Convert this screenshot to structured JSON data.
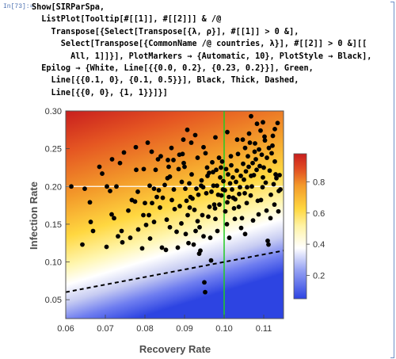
{
  "cell": {
    "label": "In[73]:=",
    "code_lines": [
      "Show[SIRParSpa,",
      "  ListPlot[Tooltip[#[[1]], #[[2]]] & /@",
      "    Transpose[{Select[Transpose[{λ, ρ}], #[[1]] > 0 &],",
      "      Select[Transpose[{CommonName /@ countries, λ}], #[[2]] > 0 &][[",
      "        All, 1]]}], PlotMarkers → {Automatic, 10}, PlotStyle → Black],",
      "  Epilog → {White, Line[{{0.0, 0.2}, {0.23, 0.2}}], Green,",
      "    Line[{{0.1, 0}, {0.1, 0.5}}], Black, Thick, Dashed,",
      "    Line[{{0, 0}, {1, 1}}]}]"
    ]
  },
  "colors": {
    "low": "#2a3fe0",
    "mid_light": "#ffffff",
    "yellow": "#ffd23a",
    "orange": "#f0851e",
    "high": "#c81e1e",
    "green_line": "#22cc22",
    "white_line": "#ffffff",
    "points": "#000000"
  },
  "chart_data": {
    "type": "scatter",
    "xlabel": "Recovery Rate",
    "ylabel": "Infection Rate",
    "xlim": [
      0.06,
      0.115
    ],
    "ylim": [
      0.025,
      0.3
    ],
    "xticks": [
      "0.06",
      "0.07",
      "0.08",
      "0.09",
      "0.10",
      "0.11"
    ],
    "yticks": [
      "0.05",
      "0.10",
      "0.15",
      "0.20",
      "0.25",
      "0.30"
    ],
    "colorbar": {
      "range": [
        0.05,
        0.98
      ],
      "ticks": [
        "0.2",
        "0.4",
        "0.6",
        "0.8"
      ]
    },
    "reference_lines": [
      {
        "label": "white horizontal",
        "y": 0.2
      },
      {
        "label": "green vertical",
        "x": 0.1
      },
      {
        "label": "black dashed",
        "from": [
          0.06,
          0.06
        ],
        "to": [
          0.115,
          0.115
        ]
      }
    ],
    "points": [
      [
        0.0614,
        0.2
      ],
      [
        0.0642,
        0.123
      ],
      [
        0.0648,
        0.197
      ],
      [
        0.0661,
        0.179
      ],
      [
        0.0663,
        0.153
      ],
      [
        0.0669,
        0.141
      ],
      [
        0.0685,
        0.226
      ],
      [
        0.0692,
        0.217
      ],
      [
        0.0704,
        0.2
      ],
      [
        0.0712,
        0.194
      ],
      [
        0.0716,
        0.163
      ],
      [
        0.0722,
        0.158
      ],
      [
        0.0728,
        0.2
      ],
      [
        0.0732,
        0.134
      ],
      [
        0.0741,
        0.141
      ],
      [
        0.0758,
        0.168
      ],
      [
        0.0767,
        0.182
      ],
      [
        0.0775,
        0.18
      ],
      [
        0.0778,
        0.222
      ],
      [
        0.0782,
        0.193
      ],
      [
        0.0796,
        0.162
      ],
      [
        0.08,
        0.178
      ],
      [
        0.0803,
        0.149
      ],
      [
        0.081,
        0.162
      ],
      [
        0.0812,
        0.201
      ],
      [
        0.0818,
        0.178
      ],
      [
        0.0823,
        0.197
      ],
      [
        0.083,
        0.186
      ],
      [
        0.0835,
        0.195
      ],
      [
        0.0838,
        0.172
      ],
      [
        0.084,
        0.24
      ],
      [
        0.0845,
        0.185
      ],
      [
        0.085,
        0.202
      ],
      [
        0.0855,
        0.156
      ],
      [
        0.0858,
        0.235
      ],
      [
        0.086,
        0.226
      ],
      [
        0.0863,
        0.213
      ],
      [
        0.0868,
        0.182
      ],
      [
        0.0872,
        0.235
      ],
      [
        0.0875,
        0.17
      ],
      [
        0.088,
        0.14
      ],
      [
        0.0885,
        0.223
      ],
      [
        0.0888,
        0.174
      ],
      [
        0.0892,
        0.151
      ],
      [
        0.0895,
        0.243
      ],
      [
        0.0898,
        0.231
      ],
      [
        0.09,
        0.226
      ],
      [
        0.0902,
        0.197
      ],
      [
        0.0905,
        0.181
      ],
      [
        0.0908,
        0.162
      ],
      [
        0.091,
        0.125
      ],
      [
        0.0912,
        0.204
      ],
      [
        0.0915,
        0.186
      ],
      [
        0.0918,
        0.216
      ],
      [
        0.092,
        0.184
      ],
      [
        0.0925,
        0.169
      ],
      [
        0.0928,
        0.141
      ],
      [
        0.093,
        0.197
      ],
      [
        0.0933,
        0.238
      ],
      [
        0.0935,
        0.189
      ],
      [
        0.0938,
        0.146
      ],
      [
        0.094,
        0.115
      ],
      [
        0.0942,
        0.201
      ],
      [
        0.0945,
        0.162
      ],
      [
        0.0948,
        0.134
      ],
      [
        0.095,
        0.073
      ],
      [
        0.0952,
        0.06
      ],
      [
        0.0955,
        0.191
      ],
      [
        0.0958,
        0.214
      ],
      [
        0.096,
        0.16
      ],
      [
        0.0962,
        0.218
      ],
      [
        0.0965,
        0.132
      ],
      [
        0.0968,
        0.193
      ],
      [
        0.097,
        0.232
      ],
      [
        0.0972,
        0.219
      ],
      [
        0.0975,
        0.176
      ],
      [
        0.0978,
        0.157
      ],
      [
        0.098,
        0.222
      ],
      [
        0.0982,
        0.201
      ],
      [
        0.0985,
        0.189
      ],
      [
        0.0988,
        0.176
      ],
      [
        0.099,
        0.212
      ],
      [
        0.0992,
        0.225
      ],
      [
        0.0995,
        0.233
      ],
      [
        0.0998,
        0.207
      ],
      [
        0.1002,
        0.195
      ],
      [
        0.1005,
        0.223
      ],
      [
        0.1008,
        0.179
      ],
      [
        0.101,
        0.216
      ],
      [
        0.1012,
        0.186
      ],
      [
        0.1015,
        0.204
      ],
      [
        0.1018,
        0.228
      ],
      [
        0.102,
        0.196
      ],
      [
        0.1022,
        0.212
      ],
      [
        0.1025,
        0.171
      ],
      [
        0.1028,
        0.183
      ],
      [
        0.103,
        0.206
      ],
      [
        0.1032,
        0.221
      ],
      [
        0.1035,
        0.243
      ],
      [
        0.1038,
        0.19
      ],
      [
        0.104,
        0.199
      ],
      [
        0.1042,
        0.214
      ],
      [
        0.1045,
        0.158
      ],
      [
        0.1048,
        0.23
      ],
      [
        0.105,
        0.209
      ],
      [
        0.1052,
        0.191
      ],
      [
        0.1055,
        0.22
      ],
      [
        0.1058,
        0.199
      ],
      [
        0.106,
        0.24
      ],
      [
        0.1062,
        0.226
      ],
      [
        0.1065,
        0.258
      ],
      [
        0.1068,
        0.214
      ],
      [
        0.107,
        0.2
      ],
      [
        0.1072,
        0.231
      ],
      [
        0.1075,
        0.215
      ],
      [
        0.1078,
        0.257
      ],
      [
        0.108,
        0.236
      ],
      [
        0.1082,
        0.222
      ],
      [
        0.1085,
        0.181
      ],
      [
        0.1088,
        0.249
      ],
      [
        0.109,
        0.227
      ],
      [
        0.1092,
        0.274
      ],
      [
        0.1095,
        0.242
      ],
      [
        0.1098,
        0.212
      ],
      [
        0.11,
        0.225
      ],
      [
        0.1102,
        0.266
      ],
      [
        0.1105,
        0.205
      ],
      [
        0.1108,
        0.238
      ],
      [
        0.111,
        0.128
      ],
      [
        0.1112,
        0.123
      ],
      [
        0.1115,
        0.221
      ],
      [
        0.1118,
        0.189
      ],
      [
        0.112,
        0.244
      ],
      [
        0.1122,
        0.254
      ],
      [
        0.1125,
        0.203
      ],
      [
        0.1128,
        0.233
      ],
      [
        0.113,
        0.216
      ],
      [
        0.1132,
        0.211
      ],
      [
        0.1135,
        0.284
      ],
      [
        0.1138,
        0.194
      ],
      [
        0.114,
        0.215
      ],
      [
        0.1142,
        0.196
      ],
      [
        0.1033,
        0.262
      ],
      [
        0.1053,
        0.251
      ],
      [
        0.1063,
        0.27
      ],
      [
        0.1083,
        0.283
      ],
      [
        0.1103,
        0.261
      ],
      [
        0.1113,
        0.251
      ],
      [
        0.1123,
        0.267
      ],
      [
        0.0987,
        0.238
      ],
      [
        0.1017,
        0.24
      ],
      [
        0.1047,
        0.262
      ],
      [
        0.1077,
        0.246
      ],
      [
        0.0947,
        0.199
      ],
      [
        0.0963,
        0.173
      ],
      [
        0.0993,
        0.188
      ],
      [
        0.1027,
        0.157
      ],
      [
        0.1057,
        0.178
      ],
      [
        0.1087,
        0.163
      ],
      [
        0.0933,
        0.154
      ],
      [
        0.0913,
        0.172
      ],
      [
        0.0893,
        0.206
      ],
      [
        0.0873,
        0.196
      ],
      [
        0.1003,
        0.167
      ],
      [
        0.1037,
        0.173
      ],
      [
        0.1067,
        0.188
      ],
      [
        0.1097,
        0.199
      ],
      [
        0.1127,
        0.176
      ],
      [
        0.0957,
        0.225
      ],
      [
        0.0943,
        0.208
      ],
      [
        0.0977,
        0.171
      ],
      [
        0.1007,
        0.15
      ],
      [
        0.1043,
        0.145
      ],
      [
        0.1073,
        0.155
      ],
      [
        0.1107,
        0.168
      ],
      [
        0.0983,
        0.141
      ],
      [
        0.1013,
        0.132
      ],
      [
        0.0923,
        0.123
      ],
      [
        0.0903,
        0.137
      ],
      [
        0.0883,
        0.119
      ],
      [
        0.0863,
        0.146
      ],
      [
        0.0843,
        0.119
      ],
      [
        0.0823,
        0.153
      ],
      [
        0.0783,
        0.143
      ],
      [
        0.0763,
        0.132
      ],
      [
        0.0743,
        0.126
      ],
      [
        0.0703,
        0.12
      ],
      [
        0.0793,
        0.118
      ],
      [
        0.0813,
        0.131
      ],
      [
        0.0853,
        0.116
      ],
      [
        0.0937,
        0.111
      ],
      [
        0.0967,
        0.102
      ],
      [
        0.1117,
        0.158
      ],
      [
        0.1137,
        0.167
      ],
      [
        0.1093,
        0.182
      ],
      [
        0.1053,
        0.137
      ],
      [
        0.1023,
        0.185
      ],
      [
        0.0997,
        0.196
      ],
      [
        0.0973,
        0.201
      ],
      [
        0.0953,
        0.244
      ],
      [
        0.0917,
        0.258
      ],
      [
        0.0897,
        0.262
      ],
      [
        0.0867,
        0.251
      ],
      [
        0.0827,
        0.222
      ],
      [
        0.0797,
        0.223
      ],
      [
        0.0737,
        0.231
      ],
      [
        0.0717,
        0.236
      ],
      [
        0.0747,
        0.245
      ],
      [
        0.0777,
        0.252
      ],
      [
        0.0807,
        0.258
      ],
      [
        0.0907,
        0.275
      ],
      [
        0.0927,
        0.268
      ],
      [
        0.0887,
        0.242
      ],
      [
        0.0857,
        0.211
      ],
      [
        0.0833,
        0.236
      ],
      [
        0.0817,
        0.246
      ],
      [
        0.1068,
        0.293
      ],
      [
        0.1098,
        0.285
      ],
      [
        0.1128,
        0.276
      ],
      [
        0.1008,
        0.272
      ],
      [
        0.0978,
        0.265
      ],
      [
        0.0948,
        0.252
      ]
    ]
  }
}
